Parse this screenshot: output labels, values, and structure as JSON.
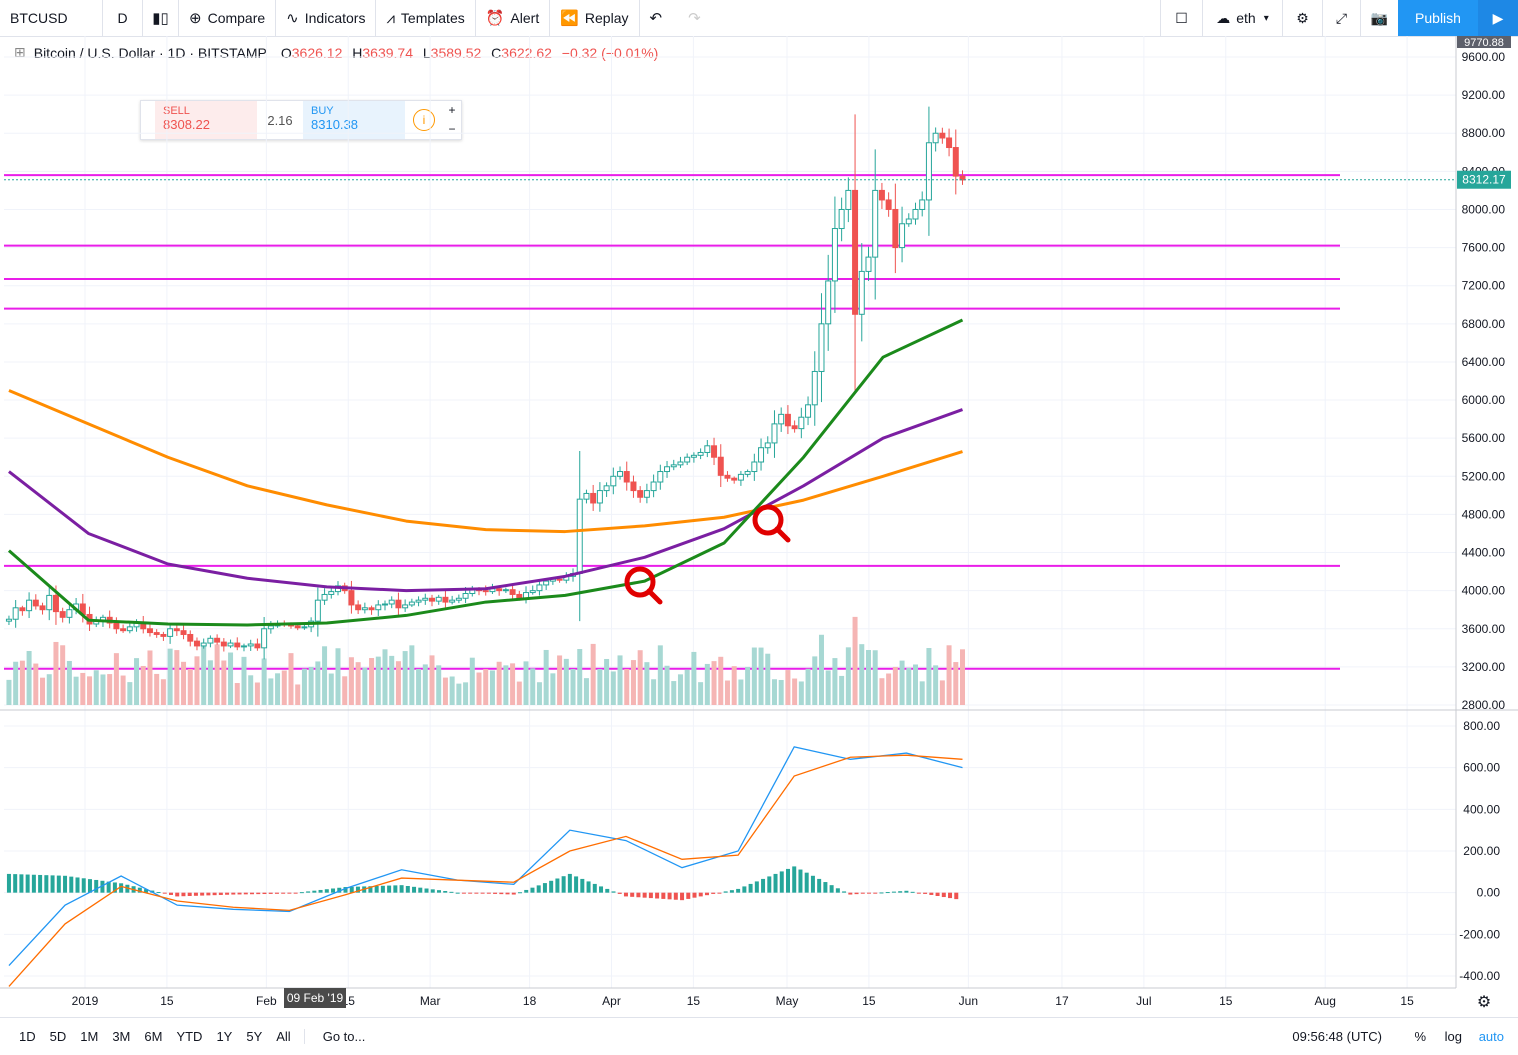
{
  "toolbar": {
    "symbol": "BTCUSD",
    "interval": "D",
    "compare": "Compare",
    "indicators": "Indicators",
    "templates": "Templates",
    "alert": "Alert",
    "replay": "Replay",
    "layout": "eth",
    "publish": "Publish"
  },
  "legend": {
    "title": "Bitcoin / U.S. Dollar · 1D · BITSTAMP",
    "o_label": "O",
    "o": "3626.12",
    "h_label": "H",
    "h": "3639.74",
    "l_label": "L",
    "l": "3589.52",
    "c_label": "C",
    "c": "3622.62",
    "chg": "−0.32 (−0.01%)"
  },
  "trade": {
    "sell_label": "SELL",
    "sell": "8308.22",
    "spread": "2.16",
    "buy_label": "BUY",
    "buy": "8310.38"
  },
  "bottom": {
    "ranges": [
      "1D",
      "5D",
      "1M",
      "3M",
      "6M",
      "YTD",
      "1Y",
      "5Y",
      "All"
    ],
    "goto": "Go to...",
    "time": "09:56:48 (UTC)",
    "pct": "%",
    "log": "log",
    "auto": "auto"
  },
  "chart_data": {
    "type": "candlestick",
    "price_axis": {
      "min": 2800,
      "max": 9600,
      "ticks": [
        "9600.00",
        "9200.00",
        "8800.00",
        "8400.00",
        "8000.00",
        "7600.00",
        "7200.00",
        "6800.00",
        "6400.00",
        "6000.00",
        "5600.00",
        "5200.00",
        "4800.00",
        "4400.00",
        "4000.00",
        "3600.00",
        "3200.00",
        "2800.00"
      ],
      "top_label": "9770.88",
      "last_label": "8312.17",
      "last": 8312.17
    },
    "macd_axis": {
      "min": -400,
      "max": 800,
      "ticks": [
        "800.00",
        "600.00",
        "400.00",
        "200.00",
        "0.00",
        "-200.00",
        "-400.00"
      ]
    },
    "x_ticks": [
      {
        "label": "2019",
        "day": 0
      },
      {
        "label": "15",
        "day": 14
      },
      {
        "label": "Feb",
        "day": 31
      },
      {
        "label": "15",
        "day": 45
      },
      {
        "label": "Mar",
        "day": 59
      },
      {
        "label": "18",
        "day": 76
      },
      {
        "label": "Apr",
        "day": 90
      },
      {
        "label": "15",
        "day": 104
      },
      {
        "label": "May",
        "day": 120
      },
      {
        "label": "15",
        "day": 134
      },
      {
        "label": "Jun",
        "day": 151
      },
      {
        "label": "17",
        "day": 167
      },
      {
        "label": "Jul",
        "day": 181
      },
      {
        "label": "15",
        "day": 195
      },
      {
        "label": "Aug",
        "day": 212
      },
      {
        "label": "15",
        "day": 226
      }
    ],
    "crosshair_label": "09 Feb '19",
    "horizontal_lines": [
      8360,
      7620,
      7270,
      6960,
      4260,
      3180
    ],
    "closes": [
      3700,
      3820,
      3790,
      3900,
      3840,
      3800,
      3950,
      3780,
      3720,
      3800,
      3860,
      3750,
      3650,
      3680,
      3720,
      3660,
      3600,
      3580,
      3620,
      3660,
      3600,
      3560,
      3540,
      3520,
      3600,
      3580,
      3540,
      3470,
      3420,
      3450,
      3500,
      3460,
      3420,
      3450,
      3410,
      3420,
      3440,
      3400,
      3600,
      3630,
      3650,
      3640,
      3630,
      3610,
      3620,
      3680,
      3900,
      3960,
      3990,
      4050,
      4000,
      3850,
      3800,
      3820,
      3800,
      3850,
      3860,
      3900,
      3820,
      3850,
      3880,
      3900,
      3920,
      3890,
      3930,
      3880,
      3900,
      3920,
      3970,
      4010,
      4000,
      3990,
      4020,
      4000,
      4010,
      3960,
      3920,
      3980,
      4000,
      4060,
      4100,
      4120,
      4110,
      4150,
      4180,
      4960,
      5020,
      4920,
      5050,
      5100,
      5200,
      5250,
      5140,
      5050,
      4980,
      5050,
      5140,
      5250,
      5300,
      5320,
      5350,
      5400,
      5420,
      5450,
      5520,
      5400,
      5210,
      5180,
      5160,
      5220,
      5250,
      5350,
      5500,
      5550,
      5750,
      5850,
      5730,
      5700,
      5820,
      5950,
      6300,
      6800,
      7250,
      7800,
      8000,
      8200,
      6900,
      7350,
      7500,
      8200,
      8100,
      8000,
      7600,
      7850,
      7900,
      8000,
      8100,
      8700,
      8800,
      8750,
      8650,
      8350,
      8310
    ],
    "opens": [
      3680,
      3700,
      3820,
      3790,
      3900,
      3840,
      3800,
      3950,
      3780,
      3720,
      3800,
      3860,
      3750,
      3650,
      3680,
      3720,
      3660,
      3600,
      3580,
      3620,
      3660,
      3600,
      3560,
      3540,
      3520,
      3600,
      3580,
      3540,
      3470,
      3420,
      3450,
      3500,
      3460,
      3420,
      3450,
      3410,
      3420,
      3440,
      3400,
      3600,
      3630,
      3650,
      3640,
      3630,
      3610,
      3620,
      3680,
      3900,
      3960,
      3990,
      4050,
      4000,
      3850,
      3800,
      3820,
      3800,
      3850,
      3860,
      3900,
      3820,
      3850,
      3880,
      3900,
      3920,
      3890,
      3930,
      3880,
      3900,
      3920,
      3970,
      4010,
      4000,
      3990,
      4020,
      4000,
      4010,
      3960,
      3920,
      3980,
      4000,
      4060,
      4100,
      4120,
      4110,
      4150,
      4180,
      4960,
      5020,
      4920,
      5050,
      5100,
      5200,
      5250,
      5140,
      5050,
      4980,
      5050,
      5140,
      5250,
      5300,
      5320,
      5350,
      5400,
      5420,
      5450,
      5520,
      5400,
      5210,
      5180,
      5160,
      5220,
      5250,
      5350,
      5500,
      5550,
      5750,
      5850,
      5730,
      5700,
      5820,
      5950,
      6300,
      6800,
      7250,
      7800,
      8000,
      8200,
      6900,
      7350,
      7500,
      8200,
      8100,
      8000,
      7600,
      7850,
      7900,
      8000,
      8100,
      8700,
      8800,
      8750,
      8650,
      8350
    ],
    "ma50": [
      4420,
      3690,
      3650,
      3640,
      3660,
      3740,
      3880,
      3950,
      4100,
      4500,
      5400,
      6450,
      6840
    ],
    "ma100": [
      5250,
      4600,
      4280,
      4130,
      4040,
      4000,
      4020,
      4150,
      4350,
      4650,
      5100,
      5600,
      5900
    ],
    "ma200": [
      6100,
      5750,
      5400,
      5100,
      4900,
      4730,
      4640,
      4620,
      4680,
      4770,
      4950,
      5200,
      5460
    ],
    "macd": [
      -350,
      -60,
      80,
      -60,
      -80,
      -90,
      20,
      110,
      60,
      40,
      300,
      250,
      120,
      200,
      700,
      640,
      670,
      600
    ],
    "signal": [
      -450,
      -150,
      30,
      -40,
      -70,
      -85,
      -10,
      70,
      60,
      50,
      200,
      270,
      160,
      180,
      560,
      650,
      660,
      640
    ]
  }
}
